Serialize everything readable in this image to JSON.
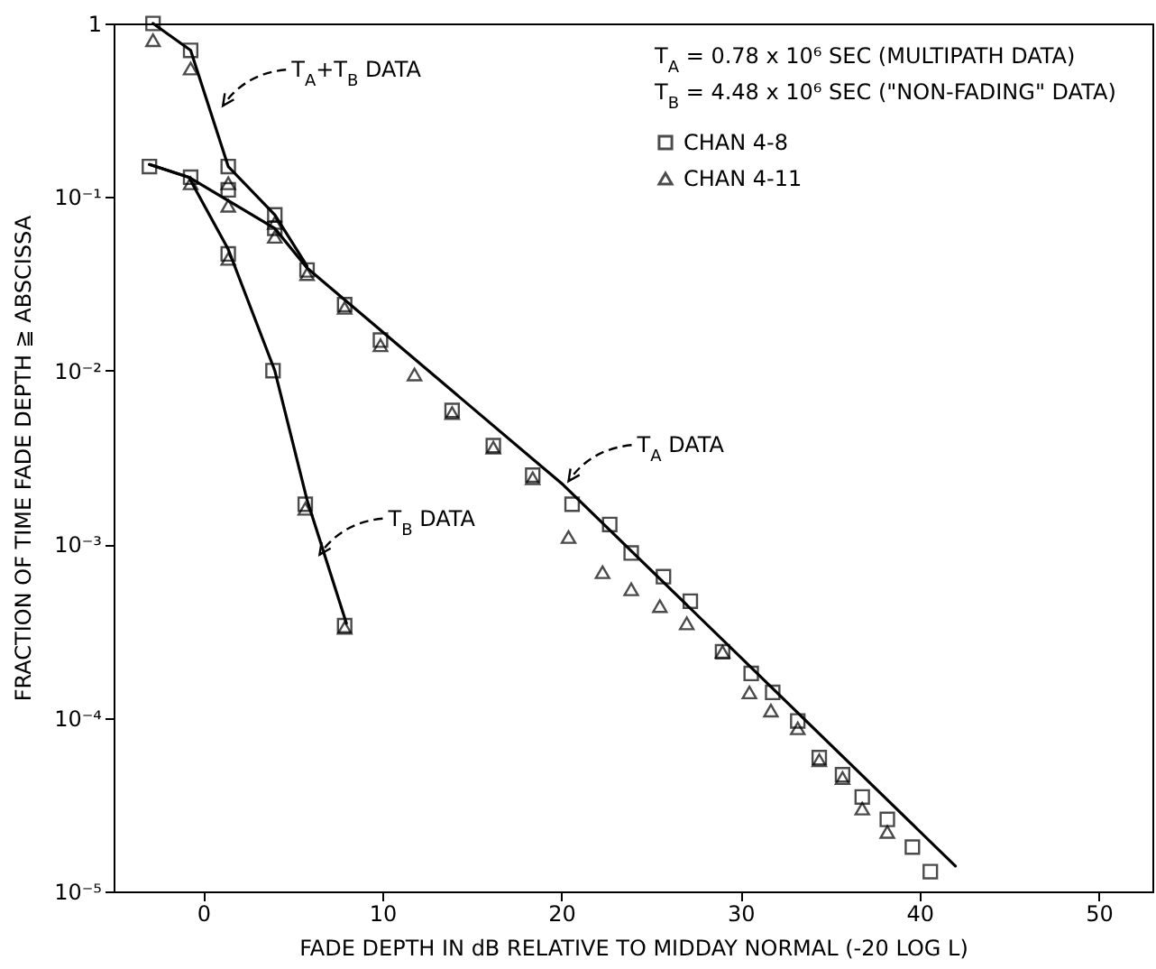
{
  "chart_data": {
    "type": "scatter",
    "xlabel": "FADE DEPTH IN dB RELATIVE TO MIDDAY NORMAL (-20 LOG L)",
    "ylabel": "FRACTION OF TIME FADE DEPTH ≧ ABSCISSA",
    "log": "y",
    "xlim": [
      -5,
      53
    ],
    "xticks": [
      0,
      10,
      20,
      30,
      40,
      50
    ],
    "ylim": [
      1e-05,
      1
    ],
    "yticks": [
      {
        "value": 1e-05,
        "label": "10⁻⁵"
      },
      {
        "value": 0.0001,
        "label": "10⁻⁴"
      },
      {
        "value": 0.001,
        "label": "10⁻³"
      },
      {
        "value": 0.01,
        "label": "10⁻²"
      },
      {
        "value": 0.1,
        "label": "10⁻¹"
      },
      1
    ],
    "legend": "top right",
    "annotations": [
      "T$_{A}$ = 0.78 x 10⁶ SEC (MULTIPATH DATA)",
      "T$_{B}$ = 4.48 x 10⁶ SEC (\"NON-FADING\" DATA)",
      {
        "text": "T$_{A}$+T$_{B}$ DATA",
        "x": 0.8,
        "y": 0.32
      },
      {
        "text": "T$_{A}$ DATA",
        "x": 20.1,
        "y": 0.0022
      },
      {
        "text": "T$_{B}$ DATA",
        "x": 6.2,
        "y": 0.00083
      }
    ],
    "series": [
      {
        "type": "line",
        "color": "#000000",
        "x": [
          -2.8,
          -0.7,
          1.4,
          4.0,
          5.8
        ],
        "values": [
          1.0,
          0.7,
          0.15,
          0.079,
          0.04
        ]
      },
      {
        "type": "line",
        "color": "#000000",
        "x": [
          -3.0,
          -0.8,
          4.0,
          5.8,
          20.1,
          42.0
        ],
        "values": [
          0.154,
          0.13,
          0.066,
          0.039,
          0.0022,
          1.4e-05
        ]
      },
      {
        "type": "line",
        "color": "#000000",
        "x": [
          -3.0,
          -0.8,
          1.4,
          4.0,
          5.8,
          8.0
        ],
        "values": [
          0.154,
          0.13,
          0.05,
          0.01,
          0.0018,
          0.00035
        ]
      },
      {
        "name": "CHAN 4-8",
        "color": "#000000",
        "marker": "square",
        "x": [
          -2.8,
          -0.7,
          -3.0,
          -0.7,
          1.4,
          1.4,
          4.0,
          4.0,
          3.9,
          1.4,
          5.8,
          5.7,
          7.9,
          7.9,
          9.9,
          13.9,
          16.2,
          18.4,
          20.6,
          22.7,
          23.9,
          25.7,
          27.2,
          29.0,
          30.6,
          31.8,
          33.2,
          34.4,
          35.7,
          36.8,
          38.2,
          39.6,
          40.6
        ],
        "values": [
          1.0,
          0.7,
          0.15,
          0.13,
          0.15,
          0.11,
          0.079,
          0.066,
          0.01,
          0.047,
          0.038,
          0.0017,
          0.00034,
          0.024,
          0.015,
          0.0059,
          0.0037,
          0.0025,
          0.0017,
          0.0013,
          0.00089,
          0.00065,
          0.00047,
          0.00024,
          0.00018,
          0.00014,
          9.6e-05,
          5.9e-05,
          4.7e-05,
          3.5e-05,
          2.6e-05,
          1.8e-05,
          1.3e-05
        ]
      },
      {
        "name": "CHAN 4-11",
        "color": "#000000",
        "marker": "triangle",
        "x": [
          -2.8,
          -0.7,
          -0.7,
          1.4,
          1.4,
          1.4,
          4.0,
          4.0,
          5.8,
          5.7,
          7.9,
          7.9,
          9.9,
          11.8,
          13.9,
          16.2,
          18.4,
          20.4,
          22.3,
          23.9,
          25.5,
          27.0,
          29.0,
          30.5,
          31.7,
          33.2,
          34.4,
          35.7,
          36.8,
          38.2
        ],
        "values": [
          0.8,
          0.55,
          0.12,
          0.12,
          0.089,
          0.044,
          0.071,
          0.059,
          0.036,
          0.0016,
          0.00033,
          0.023,
          0.014,
          0.0095,
          0.0057,
          0.0036,
          0.0024,
          0.0011,
          0.00069,
          0.00055,
          0.00044,
          0.00035,
          0.00024,
          0.00014,
          0.00011,
          8.7e-05,
          5.7e-05,
          4.5e-05,
          3e-05,
          2.2e-05
        ]
      }
    ]
  }
}
